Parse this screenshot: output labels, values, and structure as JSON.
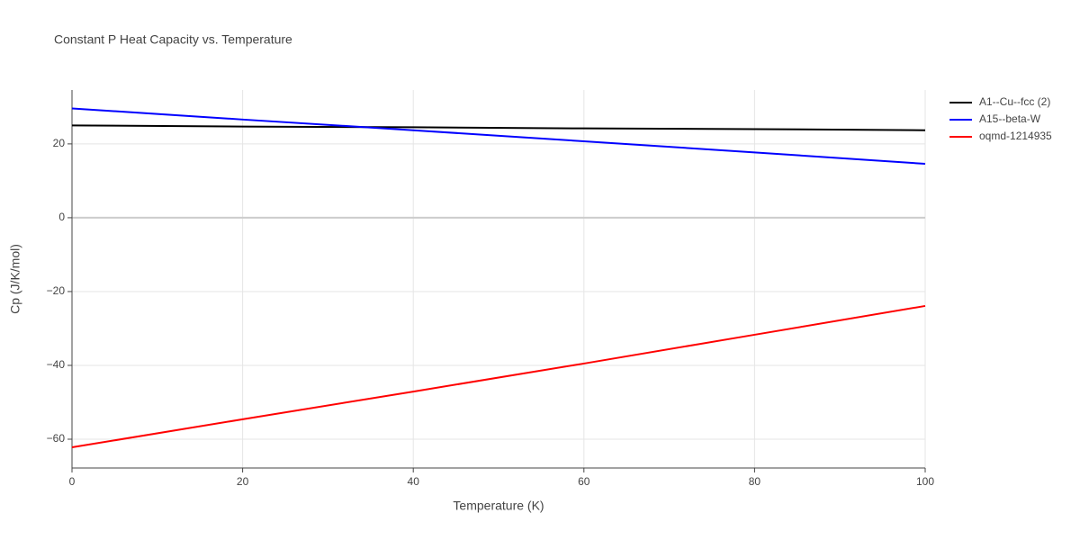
{
  "chart_data": {
    "type": "line",
    "title": "Constant P Heat Capacity vs. Temperature",
    "x_label": "Temperature (K)",
    "y_label": "Cp (J/K/mol)",
    "x": [
      0,
      20,
      40,
      60,
      80,
      100
    ],
    "series": [
      {
        "name": "A1--Cu--fcc (2)",
        "color": "#000000",
        "values": [
          25.0,
          24.7,
          24.5,
          24.2,
          24.0,
          23.7
        ]
      },
      {
        "name": "A15--beta-W",
        "color": "#0000ff",
        "values": [
          29.6,
          26.6,
          23.7,
          20.7,
          17.7,
          14.6
        ]
      },
      {
        "name": "oqmd-1214935",
        "color": "#ff0000",
        "values": [
          -62.2,
          -54.6,
          -47.1,
          -39.5,
          -31.7,
          -23.9
        ]
      }
    ],
    "xlim": [
      0,
      100
    ],
    "ylim": [
      -67.8,
      34.6
    ],
    "xticks": [
      0,
      20,
      40,
      60,
      80,
      100
    ],
    "yticks": [
      {
        "value": -60,
        "label": "−60"
      },
      {
        "value": -40,
        "label": "−40"
      },
      {
        "value": -20,
        "label": "−20"
      },
      0,
      20
    ],
    "grid": true,
    "legend": "right"
  }
}
